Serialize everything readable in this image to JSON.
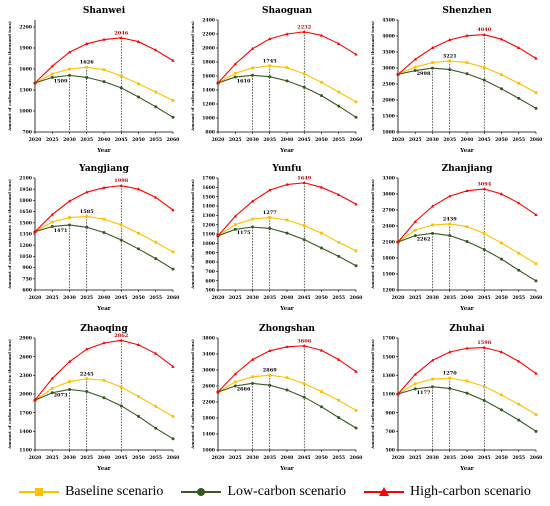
{
  "colors": {
    "baseline": "#FFC000",
    "low": "#385723",
    "high": "#FF0000",
    "axis": "#000000"
  },
  "legend": {
    "baseline": "Baseline scenario",
    "low": "Low-carbon scenario",
    "high": "High-carbon scenario"
  },
  "chart_data": [
    {
      "type": "line",
      "title": "Shanwei",
      "xlabel": "Year",
      "ylabel": "Amount of carbon emissions (ten thousand tons)",
      "x": [
        2020,
        2025,
        2030,
        2035,
        2040,
        2045,
        2050,
        2055,
        2060
      ],
      "ylim": [
        700,
        2300
      ],
      "yticks": [
        700,
        1000,
        1300,
        1600,
        1900,
        2200
      ],
      "series": [
        {
          "name": "Baseline scenario",
          "key": "baseline",
          "values": [
            1400,
            1530,
            1600,
            1626,
            1590,
            1500,
            1390,
            1270,
            1150
          ]
        },
        {
          "name": "Low-carbon scenario",
          "key": "low",
          "values": [
            1400,
            1480,
            1509,
            1480,
            1420,
            1330,
            1200,
            1060,
            910
          ]
        },
        {
          "name": "High-carbon scenario",
          "key": "high",
          "values": [
            1400,
            1640,
            1840,
            1960,
            2020,
            2046,
            1990,
            1870,
            1720
          ]
        }
      ],
      "annotations": [
        {
          "text": "1509",
          "x": 2030,
          "series": "low"
        },
        {
          "text": "1626",
          "x": 2035,
          "series": "baseline"
        },
        {
          "text": "2046",
          "x": 2045,
          "series": "high"
        }
      ]
    },
    {
      "type": "line",
      "title": "Shaoguan",
      "xlabel": "Year",
      "ylabel": "Amount of carbon emissions (ten thousand tons)",
      "x": [
        2020,
        2025,
        2030,
        2035,
        2040,
        2045,
        2050,
        2055,
        2060
      ],
      "ylim": [
        800,
        2400
      ],
      "yticks": [
        800,
        1000,
        1200,
        1400,
        1600,
        1800,
        2000,
        2200,
        2400
      ],
      "series": [
        {
          "name": "Baseline scenario",
          "key": "baseline",
          "values": [
            1500,
            1640,
            1715,
            1745,
            1720,
            1630,
            1510,
            1370,
            1230
          ]
        },
        {
          "name": "Low-carbon scenario",
          "key": "low",
          "values": [
            1500,
            1585,
            1610,
            1590,
            1530,
            1440,
            1320,
            1170,
            1010
          ]
        },
        {
          "name": "High-carbon scenario",
          "key": "high",
          "values": [
            1500,
            1770,
            1990,
            2130,
            2200,
            2232,
            2180,
            2060,
            1910
          ]
        }
      ],
      "annotations": [
        {
          "text": "1610",
          "x": 2030,
          "series": "low"
        },
        {
          "text": "1745",
          "x": 2035,
          "series": "baseline"
        },
        {
          "text": "2232",
          "x": 2045,
          "series": "high"
        }
      ]
    },
    {
      "type": "line",
      "title": "Shenzhen",
      "xlabel": "Year",
      "ylabel": "Amount of carbon emissions (ten thousand tons)",
      "x": [
        2020,
        2025,
        2030,
        2035,
        2040,
        2045,
        2050,
        2055,
        2060
      ],
      "ylim": [
        1000,
        4500
      ],
      "yticks": [
        1000,
        1500,
        2000,
        2500,
        3000,
        3500,
        4000,
        4500
      ],
      "series": [
        {
          "name": "Baseline scenario",
          "key": "baseline",
          "values": [
            2800,
            3030,
            3170,
            3221,
            3170,
            3020,
            2790,
            2520,
            2230
          ]
        },
        {
          "name": "Low-carbon scenario",
          "key": "low",
          "values": [
            2800,
            2920,
            2998,
            2950,
            2820,
            2620,
            2350,
            2050,
            1740
          ]
        },
        {
          "name": "High-carbon scenario",
          "key": "high",
          "values": [
            2800,
            3270,
            3630,
            3880,
            4010,
            4040,
            3900,
            3630,
            3300
          ]
        }
      ],
      "annotations": [
        {
          "text": "2998",
          "x": 2030,
          "series": "low"
        },
        {
          "text": "3221",
          "x": 2035,
          "series": "baseline"
        },
        {
          "text": "4040",
          "x": 2045,
          "series": "high"
        }
      ]
    },
    {
      "type": "line",
      "title": "Yangjiang",
      "xlabel": "Year",
      "ylabel": "Amount of carbon emissions (ten thousand tons)",
      "x": [
        2020,
        2025,
        2030,
        2035,
        2040,
        2045,
        2050,
        2055,
        2060
      ],
      "ylim": [
        600,
        2100
      ],
      "yticks": [
        600,
        750,
        900,
        1050,
        1200,
        1350,
        1500,
        1650,
        1800,
        1950,
        2100
      ],
      "series": [
        {
          "name": "Baseline scenario",
          "key": "baseline",
          "values": [
            1380,
            1510,
            1570,
            1585,
            1550,
            1470,
            1360,
            1240,
            1110
          ]
        },
        {
          "name": "Low-carbon scenario",
          "key": "low",
          "values": [
            1380,
            1450,
            1471,
            1440,
            1370,
            1270,
            1150,
            1020,
            880
          ]
        },
        {
          "name": "High-carbon scenario",
          "key": "high",
          "values": [
            1380,
            1610,
            1790,
            1910,
            1970,
            1998,
            1950,
            1840,
            1670
          ]
        }
      ],
      "annotations": [
        {
          "text": "1471",
          "x": 2030,
          "series": "low"
        },
        {
          "text": "1585",
          "x": 2035,
          "series": "baseline"
        },
        {
          "text": "1998",
          "x": 2045,
          "series": "high"
        }
      ]
    },
    {
      "type": "line",
      "title": "Yunfu",
      "xlabel": "Year",
      "ylabel": "Amount of carbon emissions (ten thousand tons)",
      "x": [
        2020,
        2025,
        2030,
        2035,
        2040,
        2045,
        2050,
        2055,
        2060
      ],
      "ylim": [
        500,
        1700
      ],
      "yticks": [
        500,
        600,
        700,
        800,
        900,
        1000,
        1100,
        1200,
        1300,
        1400,
        1500,
        1600,
        1700
      ],
      "series": [
        {
          "name": "Baseline scenario",
          "key": "baseline",
          "values": [
            1080,
            1200,
            1260,
            1277,
            1250,
            1190,
            1110,
            1010,
            920
          ]
        },
        {
          "name": "Low-carbon scenario",
          "key": "low",
          "values": [
            1080,
            1150,
            1175,
            1160,
            1110,
            1040,
            950,
            860,
            760
          ]
        },
        {
          "name": "High-carbon scenario",
          "key": "high",
          "values": [
            1080,
            1290,
            1450,
            1570,
            1630,
            1649,
            1600,
            1520,
            1420
          ]
        }
      ],
      "annotations": [
        {
          "text": "1175",
          "x": 2030,
          "series": "low"
        },
        {
          "text": "1277",
          "x": 2035,
          "series": "baseline"
        },
        {
          "text": "1649",
          "x": 2045,
          "series": "high"
        }
      ]
    },
    {
      "type": "line",
      "title": "Zhanjiang",
      "xlabel": "Year",
      "ylabel": "Amount of carbon emissions (ten thousand tons)",
      "x": [
        2020,
        2025,
        2030,
        2035,
        2040,
        2045,
        2050,
        2055,
        2060
      ],
      "ylim": [
        1200,
        3300
      ],
      "yticks": [
        1200,
        1500,
        1800,
        2100,
        2400,
        2700,
        3000,
        3300
      ],
      "series": [
        {
          "name": "Baseline scenario",
          "key": "baseline",
          "values": [
            2100,
            2320,
            2420,
            2439,
            2390,
            2260,
            2080,
            1890,
            1690
          ]
        },
        {
          "name": "Low-carbon scenario",
          "key": "low",
          "values": [
            2100,
            2220,
            2262,
            2220,
            2110,
            1960,
            1780,
            1570,
            1370
          ]
        },
        {
          "name": "High-carbon scenario",
          "key": "high",
          "values": [
            2100,
            2480,
            2770,
            2960,
            3060,
            3094,
            3000,
            2830,
            2610
          ]
        }
      ],
      "annotations": [
        {
          "text": "2262",
          "x": 2030,
          "series": "low"
        },
        {
          "text": "2439",
          "x": 2035,
          "series": "baseline"
        },
        {
          "text": "3094",
          "x": 2045,
          "series": "high"
        }
      ]
    },
    {
      "type": "line",
      "title": "Zhaoqing",
      "xlabel": "Year",
      "ylabel": "Amount of carbon emissions (ten thousand tons)",
      "x": [
        2020,
        2025,
        2030,
        2035,
        2040,
        2045,
        2050,
        2055,
        2060
      ],
      "ylim": [
        1100,
        2900
      ],
      "yticks": [
        1100,
        1400,
        1700,
        2000,
        2300,
        2600,
        2900
      ],
      "series": [
        {
          "name": "Baseline scenario",
          "key": "baseline",
          "values": [
            1900,
            2090,
            2200,
            2245,
            2220,
            2110,
            1960,
            1800,
            1640
          ]
        },
        {
          "name": "Low-carbon scenario",
          "key": "low",
          "values": [
            1900,
            2020,
            2073,
            2040,
            1940,
            1810,
            1640,
            1450,
            1280
          ]
        },
        {
          "name": "High-carbon scenario",
          "key": "high",
          "values": [
            1900,
            2250,
            2520,
            2720,
            2820,
            2862,
            2790,
            2650,
            2440
          ]
        }
      ],
      "annotations": [
        {
          "text": "2073",
          "x": 2030,
          "series": "low"
        },
        {
          "text": "2245",
          "x": 2035,
          "series": "baseline"
        },
        {
          "text": "2862",
          "x": 2045,
          "series": "high"
        }
      ]
    },
    {
      "type": "line",
      "title": "Zhongshan",
      "xlabel": "Year",
      "ylabel": "Amount of carbon emissions (ten thousand tons)",
      "x": [
        2020,
        2025,
        2030,
        2035,
        2040,
        2045,
        2050,
        2055,
        2060
      ],
      "ylim": [
        1000,
        3800
      ],
      "yticks": [
        1000,
        1400,
        1800,
        2200,
        2600,
        3000,
        3400,
        3800
      ],
      "series": [
        {
          "name": "Baseline scenario",
          "key": "baseline",
          "values": [
            2450,
            2700,
            2830,
            2869,
            2810,
            2660,
            2460,
            2240,
            1990
          ]
        },
        {
          "name": "Low-carbon scenario",
          "key": "low",
          "values": [
            2450,
            2600,
            2666,
            2620,
            2500,
            2320,
            2080,
            1810,
            1550
          ]
        },
        {
          "name": "High-carbon scenario",
          "key": "high",
          "values": [
            2450,
            2900,
            3260,
            3480,
            3580,
            3606,
            3490,
            3260,
            2960
          ]
        }
      ],
      "annotations": [
        {
          "text": "2666",
          "x": 2030,
          "series": "low"
        },
        {
          "text": "2869",
          "x": 2035,
          "series": "baseline"
        },
        {
          "text": "3606",
          "x": 2045,
          "series": "high"
        }
      ]
    },
    {
      "type": "line",
      "title": "Zhuhai",
      "xlabel": "Year",
      "ylabel": "Amount of carbon emissions (ten thousand tons)",
      "x": [
        2020,
        2025,
        2030,
        2035,
        2040,
        2045,
        2050,
        2055,
        2060
      ],
      "ylim": [
        500,
        1700
      ],
      "yticks": [
        500,
        700,
        900,
        1100,
        1300,
        1500,
        1700
      ],
      "series": [
        {
          "name": "Baseline scenario",
          "key": "baseline",
          "values": [
            1100,
            1210,
            1260,
            1270,
            1240,
            1180,
            1090,
            990,
            880
          ]
        },
        {
          "name": "Low-carbon scenario",
          "key": "low",
          "values": [
            1100,
            1155,
            1177,
            1160,
            1110,
            1030,
            930,
            820,
            700
          ]
        },
        {
          "name": "High-carbon scenario",
          "key": "high",
          "values": [
            1100,
            1310,
            1460,
            1550,
            1590,
            1598,
            1550,
            1450,
            1320
          ]
        }
      ],
      "annotations": [
        {
          "text": "1177",
          "x": 2030,
          "series": "low"
        },
        {
          "text": "1270",
          "x": 2035,
          "series": "baseline"
        },
        {
          "text": "1598",
          "x": 2045,
          "series": "high"
        }
      ]
    }
  ]
}
